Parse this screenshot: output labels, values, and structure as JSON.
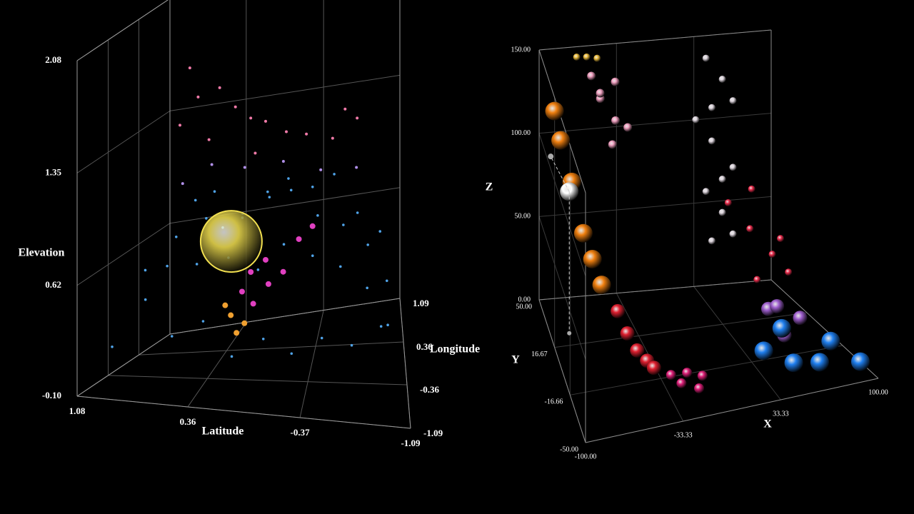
{
  "chart_data": [
    {
      "type": "scatter3d",
      "xlabel": "Latitude",
      "ylabel": "Longitude",
      "zlabel": "Elevation",
      "xlim": [
        1.08,
        -1.09
      ],
      "ylim": [
        -1.09,
        1.09
      ],
      "zlim": [
        -0.1,
        2.08
      ],
      "xticks": [
        1.08,
        0.36,
        -0.37,
        -1.09
      ],
      "yticks": [
        -1.09,
        -0.36,
        0.36,
        1.09
      ],
      "zticks": [
        {
          "value": -0.1,
          "label": "-0.10"
        },
        0.62,
        1.35,
        2.08
      ],
      "grid": true,
      "series": [
        {
          "color": "#4fa3e8",
          "marker_size": 1.8,
          "x": [
            0.9,
            0.7,
            0.5,
            0.3,
            0.1,
            -0.1,
            -0.3,
            -0.5,
            -0.7,
            -0.9,
            0.8,
            0.6,
            0.4,
            0.2,
            0.0,
            -0.2,
            -0.4,
            -0.6,
            -0.8,
            -0.95,
            0.8,
            0.6,
            0.4,
            0.2,
            0.0,
            -0.2,
            -0.4,
            -0.6,
            -0.8,
            -0.95,
            0.7,
            0.5,
            0.3,
            0.1,
            -0.1,
            -0.3,
            -0.5,
            -0.7,
            -0.9
          ],
          "y": [
            -0.9,
            -0.8,
            -0.9,
            -0.85,
            -0.9,
            -0.8,
            -0.9,
            -0.85,
            -0.8,
            -0.7,
            -0.4,
            -0.3,
            -0.2,
            -0.4,
            -0.3,
            -0.4,
            -0.3,
            -0.2,
            -0.3,
            -0.4,
            0.2,
            0.3,
            0.1,
            0.2,
            0.3,
            0.1,
            0.2,
            0.3,
            0.2,
            0.1,
            0.7,
            0.8,
            0.7,
            0.8,
            0.7,
            0.8,
            0.7,
            0.8,
            0.7
          ],
          "z": [
            0.2,
            0.5,
            0.3,
            0.4,
            0.2,
            0.3,
            0.25,
            0.35,
            0.3,
            0.4,
            0.6,
            0.8,
            0.9,
            0.7,
            0.6,
            0.8,
            0.7,
            0.6,
            0.5,
            0.3,
            0.5,
            0.9,
            1.0,
            0.8,
            0.9,
            1.0,
            0.8,
            0.7,
            0.6,
            0.4,
            0.4,
            0.6,
            0.7,
            0.8,
            0.9,
            0.8,
            0.9,
            0.6,
            0.5
          ]
        },
        {
          "color": "#f07aa8",
          "marker_size": 2,
          "x": [
            0.5,
            0.45,
            0.3,
            0.2,
            0.1,
            0.0,
            -0.15,
            -0.3,
            -0.6,
            -0.7,
            0.55,
            0.35,
            -0.5,
            0.05
          ],
          "y": [
            -0.3,
            -0.25,
            -0.2,
            -0.1,
            0.0,
            0.1,
            0.2,
            0.3,
            0.6,
            0.7,
            -0.4,
            -0.35,
            0.5,
            -0.1
          ],
          "z": [
            1.9,
            1.7,
            1.75,
            1.6,
            1.5,
            1.45,
            1.35,
            1.3,
            1.35,
            1.25,
            1.55,
            1.45,
            1.2,
            1.3
          ]
        },
        {
          "color": "#b08fe8",
          "marker_size": 2,
          "x": [
            0.4,
            0.2,
            -0.1,
            -0.4,
            -0.7,
            0.6
          ],
          "y": [
            0.0,
            0.3,
            0.4,
            0.5,
            0.5,
            -0.1
          ],
          "z": [
            1.2,
            1.1,
            1.1,
            1.0,
            1.0,
            1.1
          ]
        },
        {
          "color": "#f2e050",
          "marker_size": 43,
          "x": [
            0.25
          ],
          "y": [
            0.0
          ],
          "z": [
            0.7
          ]
        },
        {
          "color": "#e040c0",
          "marker_size": 4,
          "x": [
            0.05,
            -0.05,
            -0.15,
            0.0,
            0.1,
            0.15,
            -0.25,
            -0.35
          ],
          "y": [
            -0.2,
            -0.1,
            0.0,
            0.1,
            0.0,
            -0.1,
            0.2,
            0.3
          ],
          "z": [
            0.35,
            0.45,
            0.5,
            0.55,
            0.5,
            0.4,
            0.65,
            0.7
          ]
        },
        {
          "color": "#f0a030",
          "marker_size": 4,
          "x": [
            0.2,
            0.15,
            0.25,
            0.1
          ],
          "y": [
            -0.3,
            -0.35,
            -0.25,
            -0.3
          ],
          "z": [
            0.3,
            0.2,
            0.35,
            0.25
          ]
        }
      ]
    },
    {
      "type": "scatter3d",
      "xlabel": "X",
      "ylabel": "Y",
      "zlabel": "Z",
      "xlim": [
        -100,
        100
      ],
      "ylim": [
        -50,
        50
      ],
      "zlim": [
        0,
        150
      ],
      "xticks": [
        {
          "value": -100,
          "label": "-100.00"
        },
        {
          "value": -33.33,
          "label": "-33.33"
        },
        {
          "value": 33.33,
          "label": "33.33"
        },
        {
          "value": 100,
          "label": "100.00"
        }
      ],
      "yticks": [
        {
          "value": -50,
          "label": "-50.00"
        },
        {
          "value": -16.66,
          "label": "-16.66"
        },
        {
          "value": 16.67,
          "label": "16.67"
        },
        {
          "value": 50,
          "label": "50.00"
        }
      ],
      "zticks": [
        {
          "value": 0,
          "label": "0.00"
        },
        {
          "value": 50,
          "label": "50.00"
        },
        {
          "value": 100,
          "label": "100.00"
        },
        {
          "value": 150,
          "label": "150.00"
        }
      ],
      "grid": true,
      "series": [
        {
          "color": "#f08010",
          "marker_size": 13,
          "x": [
            -95,
            -90,
            -85,
            -80,
            -75,
            -70
          ],
          "y": [
            30,
            30,
            20,
            10,
            5,
            0
          ],
          "z": [
            130,
            112,
            95,
            72,
            60,
            48
          ]
        },
        {
          "color": "#ffffff",
          "marker_size": 13,
          "x": [
            -85
          ],
          "y": [
            25
          ],
          "z": [
            85
          ]
        },
        {
          "color": "#e02030",
          "marker_size": 10,
          "x": [
            -60,
            -55,
            -50,
            -45,
            -40
          ],
          "y": [
            -5,
            -10,
            -15,
            -20,
            -20
          ],
          "z": [
            35,
            25,
            18,
            15,
            10
          ]
        },
        {
          "color": "#e0207a",
          "marker_size": 7,
          "x": [
            -30,
            -25,
            -20,
            -15,
            -10
          ],
          "y": [
            -25,
            -30,
            -28,
            -35,
            -30
          ],
          "z": [
            8,
            6,
            10,
            5,
            8
          ]
        },
        {
          "color": "#f0a0c0",
          "marker_size": 6,
          "x": [
            -60,
            -55,
            -50,
            -45,
            -40,
            -50,
            -35
          ],
          "y": [
            40,
            35,
            45,
            30,
            40,
            25,
            30
          ],
          "z": [
            140,
            130,
            125,
            120,
            135,
            110,
            115
          ]
        },
        {
          "color": "#f0c040",
          "marker_size": 5,
          "x": [
            -70,
            -60,
            -50
          ],
          "y": [
            45,
            48,
            50
          ],
          "z": [
            148,
            145,
            142
          ]
        },
        {
          "color": "#e0d8e0",
          "marker_size": 5,
          "x": [
            40,
            50,
            55,
            45,
            35,
            45,
            55,
            50,
            40,
            50,
            55,
            45
          ],
          "y": [
            45,
            40,
            35,
            45,
            50,
            45,
            35,
            40,
            45,
            40,
            35,
            45
          ],
          "z": [
            140,
            130,
            120,
            110,
            100,
            90,
            80,
            70,
            60,
            50,
            40,
            30
          ]
        },
        {
          "color": "#f03050",
          "marker_size": 5,
          "x": [
            40,
            50,
            60,
            45,
            55,
            70,
            65
          ],
          "y": [
            20,
            10,
            0,
            -5,
            15,
            5,
            -10
          ],
          "z": [
            70,
            60,
            50,
            40,
            80,
            55,
            45
          ]
        },
        {
          "color": "#a060d0",
          "marker_size": 10,
          "x": [
            50,
            60,
            70,
            55
          ],
          "y": [
            -10,
            -5,
            -15,
            -20
          ],
          "z": [
            25,
            22,
            20,
            15
          ]
        },
        {
          "color": "#2080f0",
          "marker_size": 13,
          "x": [
            40,
            55,
            70,
            85,
            95,
            60
          ],
          "y": [
            -20,
            -30,
            -35,
            -25,
            -40,
            -10
          ],
          "z": [
            8,
            5,
            6,
            10,
            5,
            12
          ]
        }
      ]
    }
  ]
}
